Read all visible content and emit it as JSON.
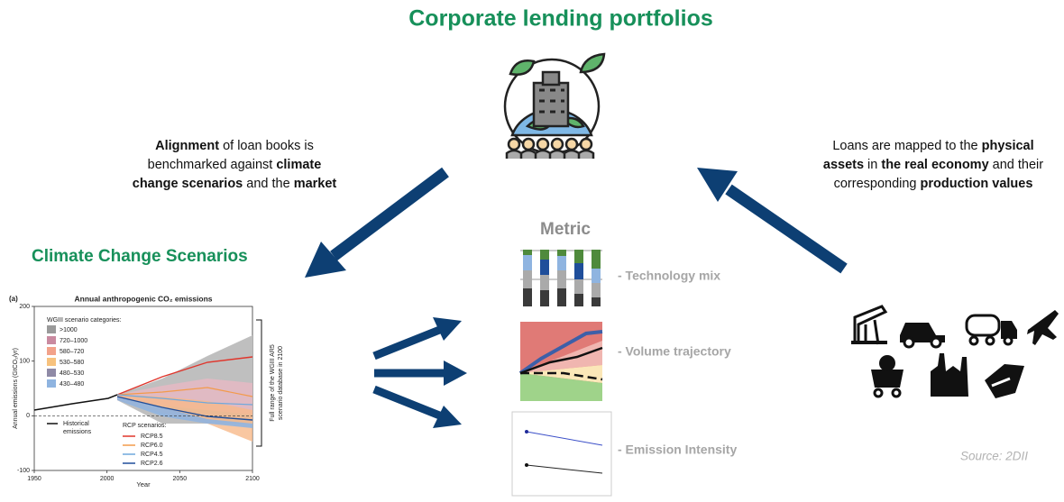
{
  "title": "Corporate lending portfolios",
  "alignment_text": [
    [
      {
        "text": "Alignment",
        "bold": true
      },
      {
        "text": " of loan books is",
        "bold": false
      }
    ],
    [
      {
        "text": "benchmarked against ",
        "bold": false
      },
      {
        "text": "climate",
        "bold": true
      }
    ],
    [
      {
        "text": "change scenarios",
        "bold": true
      },
      {
        "text": " and the ",
        "bold": false
      },
      {
        "text": "market",
        "bold": true
      }
    ]
  ],
  "mapping_text": [
    [
      {
        "text": "Loans are mapped to the ",
        "bold": false
      },
      {
        "text": "physical",
        "bold": true
      }
    ],
    [
      {
        "text": "assets",
        "bold": true
      },
      {
        "text": " in ",
        "bold": false
      },
      {
        "text": "the real economy",
        "bold": true
      },
      {
        "text": " and their",
        "bold": false
      }
    ],
    [
      {
        "text": "corresponding ",
        "bold": false
      },
      {
        "text": "production values",
        "bold": true
      }
    ]
  ],
  "scenarios_title": "Climate Change Scenarios",
  "metric": {
    "title": "Metric",
    "items": [
      "- Technology mix",
      "- Volume trajectory",
      "- Emission Intensity"
    ]
  },
  "source": "Source: 2DII",
  "ipcc_chart": {
    "panel": "(a)",
    "title": "Annual anthropogenic CO₂ emissions",
    "y_label": "Annual emissions (GtCO₂/yr)",
    "x_label": "Year",
    "xlim": [
      1950,
      2100
    ],
    "xticks": [
      1950,
      2000,
      2050,
      2100
    ],
    "ylim": [
      -100,
      200
    ],
    "yticks": [
      -100,
      0,
      100,
      200
    ],
    "legend_title": "WGIII scenario categories:",
    "categories": [
      {
        "name": ">1000",
        "color": "#9a9a9a"
      },
      {
        "name": "720–1000",
        "color": "#c98aa0"
      },
      {
        "name": "580–720",
        "color": "#f2a28a"
      },
      {
        "name": "530–580",
        "color": "#f7c27e"
      },
      {
        "name": "480–530",
        "color": "#8f8aa6"
      },
      {
        "name": "430–480",
        "color": "#8fb4e0"
      }
    ],
    "historical": "Historical emissions",
    "rcp_title": "RCP scenarios:",
    "rcp": [
      {
        "name": "RCP8.5",
        "color": "#e0352b"
      },
      {
        "name": "RCP6.0",
        "color": "#f39a4a"
      },
      {
        "name": "RCP4.5",
        "color": "#6fa8dc"
      },
      {
        "name": "RCP2.6",
        "color": "#1f4e9a"
      }
    ],
    "bracket_label": [
      "Full range of the WGIII AR5",
      "scenario database in 2100"
    ]
  }
}
